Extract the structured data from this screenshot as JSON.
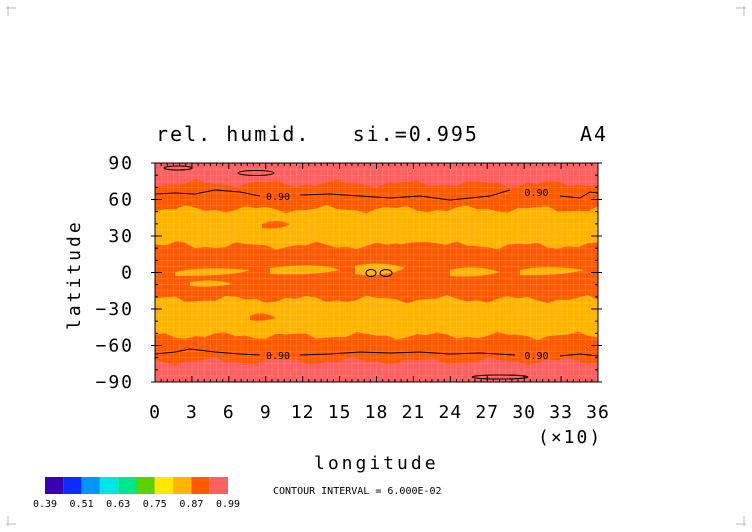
{
  "chart_data": {
    "type": "heatmap",
    "title": "rel. humid.   si.=0.995",
    "panel_label": "A4",
    "xlabel": "longitude",
    "x_multiplier": "(×10)",
    "ylabel": "latitude",
    "xlim": [
      0,
      36
    ],
    "ylim": [
      -90,
      90
    ],
    "x_ticks": [
      "0",
      "3",
      "6",
      "9",
      "12",
      "15",
      "18",
      "21",
      "24",
      "27",
      "30",
      "33",
      "36"
    ],
    "y_ticks": [
      "90",
      "60",
      "30",
      "0",
      "−30",
      "−60",
      "−90"
    ],
    "y_tick_values": [
      90,
      60,
      30,
      0,
      -30,
      -60,
      -90
    ],
    "colorbar": {
      "colors": [
        "#3b00b0",
        "#0a2cff",
        "#0096ff",
        "#00e6e6",
        "#00e68c",
        "#5ad200",
        "#ffe800",
        "#ffb400",
        "#ff5a00",
        "#ff6060"
      ],
      "tick_labels": [
        "0.39",
        "0.51",
        "0.63",
        "0.75",
        "0.87",
        "0.99"
      ]
    },
    "contour_interval_label": "CONTOUR INTERVAL = 6.000E-02",
    "contour_labels": [
      {
        "text": "0.90",
        "lon": 100,
        "lat": 63
      },
      {
        "text": "0.90",
        "lon": 310,
        "lat": 66
      },
      {
        "text": "0.90",
        "lon": 100,
        "lat": -68
      },
      {
        "text": "0.90",
        "lon": 310,
        "lat": -68
      }
    ],
    "bands": [
      {
        "lat_from": 90,
        "lat_to": 73,
        "value": 0.95,
        "color": "#ff6060"
      },
      {
        "lat_from": 73,
        "lat_to": 52,
        "value": 0.9,
        "color": "#ff5a00"
      },
      {
        "lat_from": 52,
        "lat_to": 22,
        "value": 0.84,
        "color": "#ffb400"
      },
      {
        "lat_from": 22,
        "lat_to": -22,
        "value": 0.9,
        "color": "#ff5a00"
      },
      {
        "lat_from": -22,
        "lat_to": -52,
        "value": 0.84,
        "color": "#ffb400"
      },
      {
        "lat_from": -52,
        "lat_to": -73,
        "value": 0.9,
        "color": "#ff5a00"
      },
      {
        "lat_from": -73,
        "lat_to": -90,
        "value": 0.95,
        "color": "#ff6060"
      }
    ]
  }
}
